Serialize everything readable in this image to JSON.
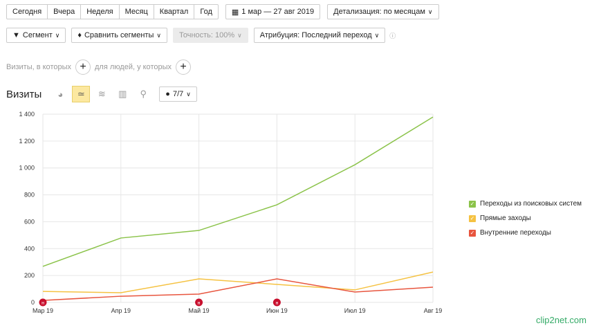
{
  "periods": [
    "Сегодня",
    "Вчера",
    "Неделя",
    "Месяц",
    "Квартал",
    "Год"
  ],
  "date_range": "1 мар — 27 авг 2019",
  "detail": "Детализация: по месяцам",
  "segment": "Сегмент",
  "compare": "Сравнить сегменты",
  "accuracy": "Точность: 100%",
  "attribution": "Атрибуция: Последний переход",
  "filter": {
    "visits_label": "Визиты, в которых",
    "people_label": "для людей, у которых"
  },
  "chart_title": "Визиты",
  "series_count": "7/7",
  "logo": "clip2net.com",
  "chart_data": {
    "type": "line",
    "categories": [
      "Мар 19",
      "Апр 19",
      "Май 19",
      "Июн 19",
      "Июл 19",
      "Авг 19"
    ],
    "ylim": [
      0,
      1400
    ],
    "yticks": [
      "0",
      "200",
      "400",
      "600",
      "800",
      "1 000",
      "1 200",
      "1 400"
    ],
    "grid": true,
    "legend": "right",
    "series": [
      {
        "name": "Переходы из поисковых систем",
        "color": "#8bc34a",
        "values": [
          268,
          479,
          535,
          726,
          1024,
          1379
        ]
      },
      {
        "name": "Прямые заходы",
        "color": "#f5c242",
        "values": [
          82,
          72,
          175,
          134,
          93,
          226
        ]
      },
      {
        "name": "Внутренние переходы",
        "color": "#e8553e",
        "values": [
          15,
          46,
          62,
          175,
          77,
          113
        ]
      }
    ],
    "annotations": [
      {
        "x": "Мар 19",
        "label": "н"
      },
      {
        "x": "Май 19",
        "label": "н"
      },
      {
        "x": "Июн 19",
        "label": "н"
      }
    ]
  }
}
